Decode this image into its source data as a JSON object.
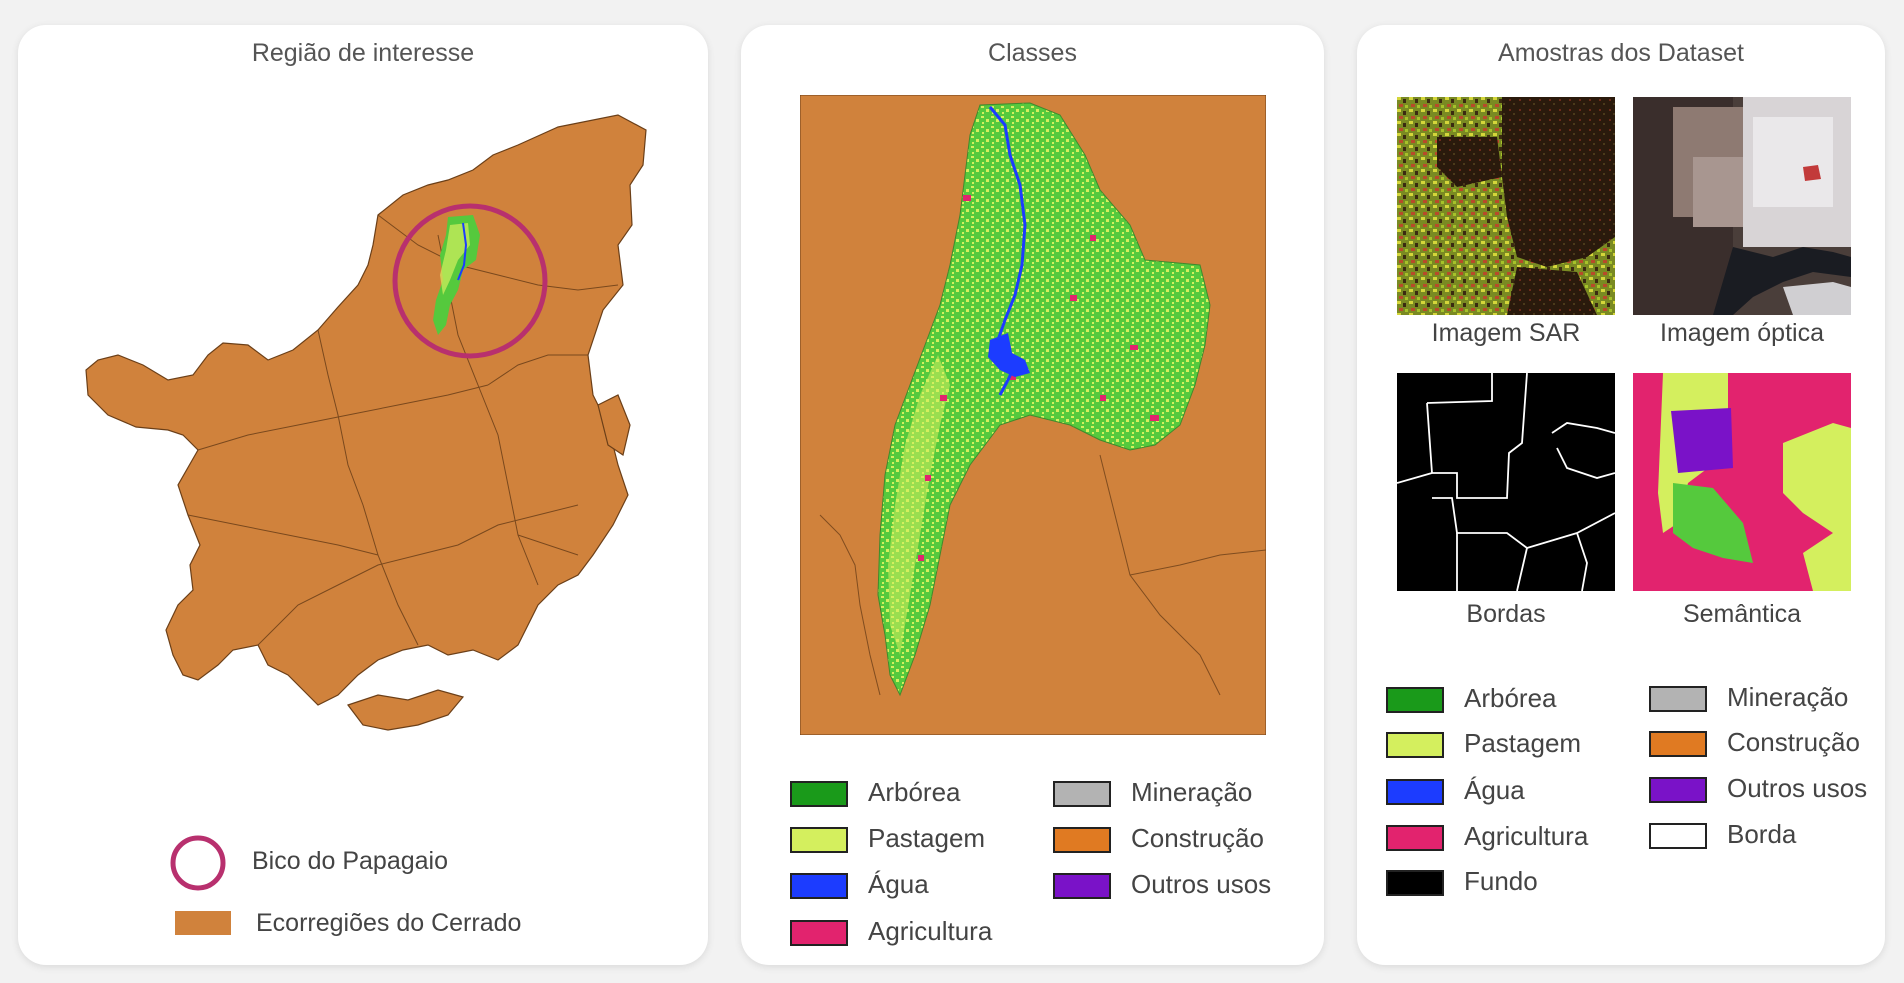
{
  "panel1": {
    "title": "Região de interesse",
    "legend": {
      "circle_label": "Bico do Papagaio",
      "fill_label": "Ecorregiões do Cerrado"
    }
  },
  "panel2": {
    "title": "Classes",
    "legend": [
      {
        "label": "Arbórea",
        "color": "#1a9a1a"
      },
      {
        "label": "Pastagem",
        "color": "#d4ef5e"
      },
      {
        "label": "Água",
        "color": "#1c3cff"
      },
      {
        "label": "Agricultura",
        "color": "#e2236e"
      },
      {
        "label": "Mineração",
        "color": "#b3b3b3"
      },
      {
        "label": "Construção",
        "color": "#e07a22"
      },
      {
        "label": "Outros usos",
        "color": "#7a12c8"
      }
    ]
  },
  "panel3": {
    "title": "Amostras dos Dataset",
    "samples": [
      {
        "caption": "Imagem SAR"
      },
      {
        "caption": "Imagem óptica"
      },
      {
        "caption": "Bordas"
      },
      {
        "caption": "Semântica"
      }
    ],
    "legend": [
      {
        "label": "Arbórea",
        "color": "#1a9a1a"
      },
      {
        "label": "Pastagem",
        "color": "#d4ef5e"
      },
      {
        "label": "Água",
        "color": "#1c3cff"
      },
      {
        "label": "Agricultura",
        "color": "#e2236e"
      },
      {
        "label": "Fundo",
        "color": "#000000"
      },
      {
        "label": "Mineração",
        "color": "#b3b3b3"
      },
      {
        "label": "Construção",
        "color": "#e07a22"
      },
      {
        "label": "Outros usos",
        "color": "#7a12c8"
      },
      {
        "label": "Borda",
        "color": "#ffffff"
      }
    ]
  },
  "colors": {
    "cerrado": "#d0823c",
    "circle": "#b8306e",
    "green_dark": "#55c93d",
    "green_light": "#d4ef5e",
    "water": "#1c3cff"
  }
}
